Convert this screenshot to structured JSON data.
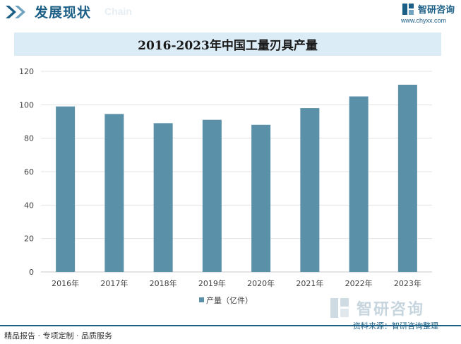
{
  "header": {
    "title": "发展现状",
    "subtitle": "Chain",
    "brand_name": "智研咨询",
    "brand_url": "www.chyxx.com"
  },
  "chart_data": {
    "type": "bar",
    "title": "2016-2023年中国工量刃具产量",
    "categories": [
      "2016年",
      "2017年",
      "2018年",
      "2019年",
      "2020年",
      "2021年",
      "2022年",
      "2023年"
    ],
    "series": [
      {
        "name": "产量（亿件）",
        "values": [
          99,
          94.5,
          89,
          91,
          88,
          98,
          105,
          112
        ],
        "color": "#5b91a8"
      }
    ],
    "ylim": [
      0,
      120
    ],
    "yticks": [
      0,
      20,
      40,
      60,
      80,
      100,
      120
    ],
    "grid": true,
    "legend": "bottom-center"
  },
  "footer": {
    "left_text": "精品报告 · 专项定制 · 品质服务",
    "source": "资料来源：智研咨询整理",
    "watermark_brand": "智研咨询"
  }
}
